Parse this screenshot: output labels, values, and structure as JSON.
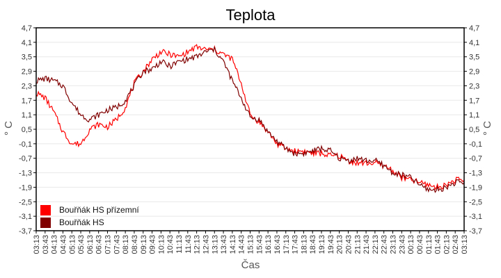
{
  "chart_data": {
    "type": "line",
    "title": "Teplota",
    "xlabel": "Čas",
    "ylabel": "° C",
    "ylim": [
      -3.7,
      4.7
    ],
    "yticks": [
      "4,7",
      "4,1",
      "3,5",
      "2,9",
      "2,3",
      "1,7",
      "1,1",
      "0,5",
      "-0,1",
      "-0,7",
      "-1,3",
      "-1,9",
      "-2,5",
      "-3,1",
      "-3,7"
    ],
    "ytick_values": [
      4.7,
      4.1,
      3.5,
      2.9,
      2.3,
      1.7,
      1.1,
      0.5,
      -0.1,
      -0.7,
      -1.3,
      -1.9,
      -2.5,
      -3.1,
      -3.7
    ],
    "grid": true,
    "legend_position": "lower-left inside",
    "x": [
      "03:13",
      "03:43",
      "04:13",
      "04:43",
      "05:13",
      "05:43",
      "06:13",
      "06:43",
      "07:13",
      "07:43",
      "08:13",
      "08:43",
      "09:13",
      "09:43",
      "10:13",
      "10:43",
      "11:13",
      "11:43",
      "12:13",
      "12:43",
      "13:13",
      "13:43",
      "14:13",
      "14:43",
      "15:13",
      "15:43",
      "16:13",
      "16:43",
      "17:13",
      "17:43",
      "18:13",
      "18:43",
      "19:13",
      "19:43",
      "20:13",
      "20:43",
      "21:13",
      "21:43",
      "22:13",
      "22:43",
      "23:13",
      "23:43",
      "00:13",
      "00:43",
      "01:13",
      "01:43",
      "02:13",
      "02:43",
      "03:13"
    ],
    "series": [
      {
        "name": "Bouřňák HS přízemní",
        "color": "#ff0000",
        "values": [
          2.0,
          1.8,
          1.2,
          0.4,
          -0.1,
          -0.1,
          0.5,
          0.7,
          0.6,
          0.9,
          1.4,
          2.4,
          2.9,
          3.4,
          3.7,
          3.6,
          3.5,
          3.7,
          3.9,
          3.8,
          3.8,
          3.6,
          3.4,
          2.4,
          1.1,
          0.8,
          0.4,
          -0.1,
          -0.3,
          -0.4,
          -0.4,
          -0.5,
          -0.5,
          -0.6,
          -0.6,
          -0.8,
          -0.9,
          -0.9,
          -0.9,
          -1.0,
          -1.2,
          -1.5,
          -1.6,
          -1.7,
          -1.8,
          -1.9,
          -1.8,
          -1.6,
          -1.6
        ]
      },
      {
        "name": "Bouřňák HS",
        "color": "#800000",
        "values": [
          2.5,
          2.6,
          2.5,
          2.3,
          1.6,
          1.1,
          0.9,
          1.1,
          1.3,
          1.4,
          1.7,
          2.3,
          2.9,
          3.0,
          3.3,
          3.1,
          3.3,
          3.4,
          3.5,
          3.7,
          3.8,
          3.3,
          2.5,
          1.8,
          1.0,
          0.9,
          0.4,
          0.0,
          -0.3,
          -0.5,
          -0.5,
          -0.4,
          -0.3,
          -0.4,
          -0.7,
          -0.8,
          -0.7,
          -0.8,
          -0.8,
          -1.0,
          -1.3,
          -1.4,
          -1.5,
          -1.8,
          -2.0,
          -2.0,
          -1.9,
          -1.7,
          -1.7
        ]
      }
    ]
  },
  "legend": {
    "items": [
      {
        "label": "Bouřňák HS přízemní",
        "color": "#ff0000"
      },
      {
        "label": "Bouřňák HS",
        "color": "#800000"
      }
    ]
  }
}
